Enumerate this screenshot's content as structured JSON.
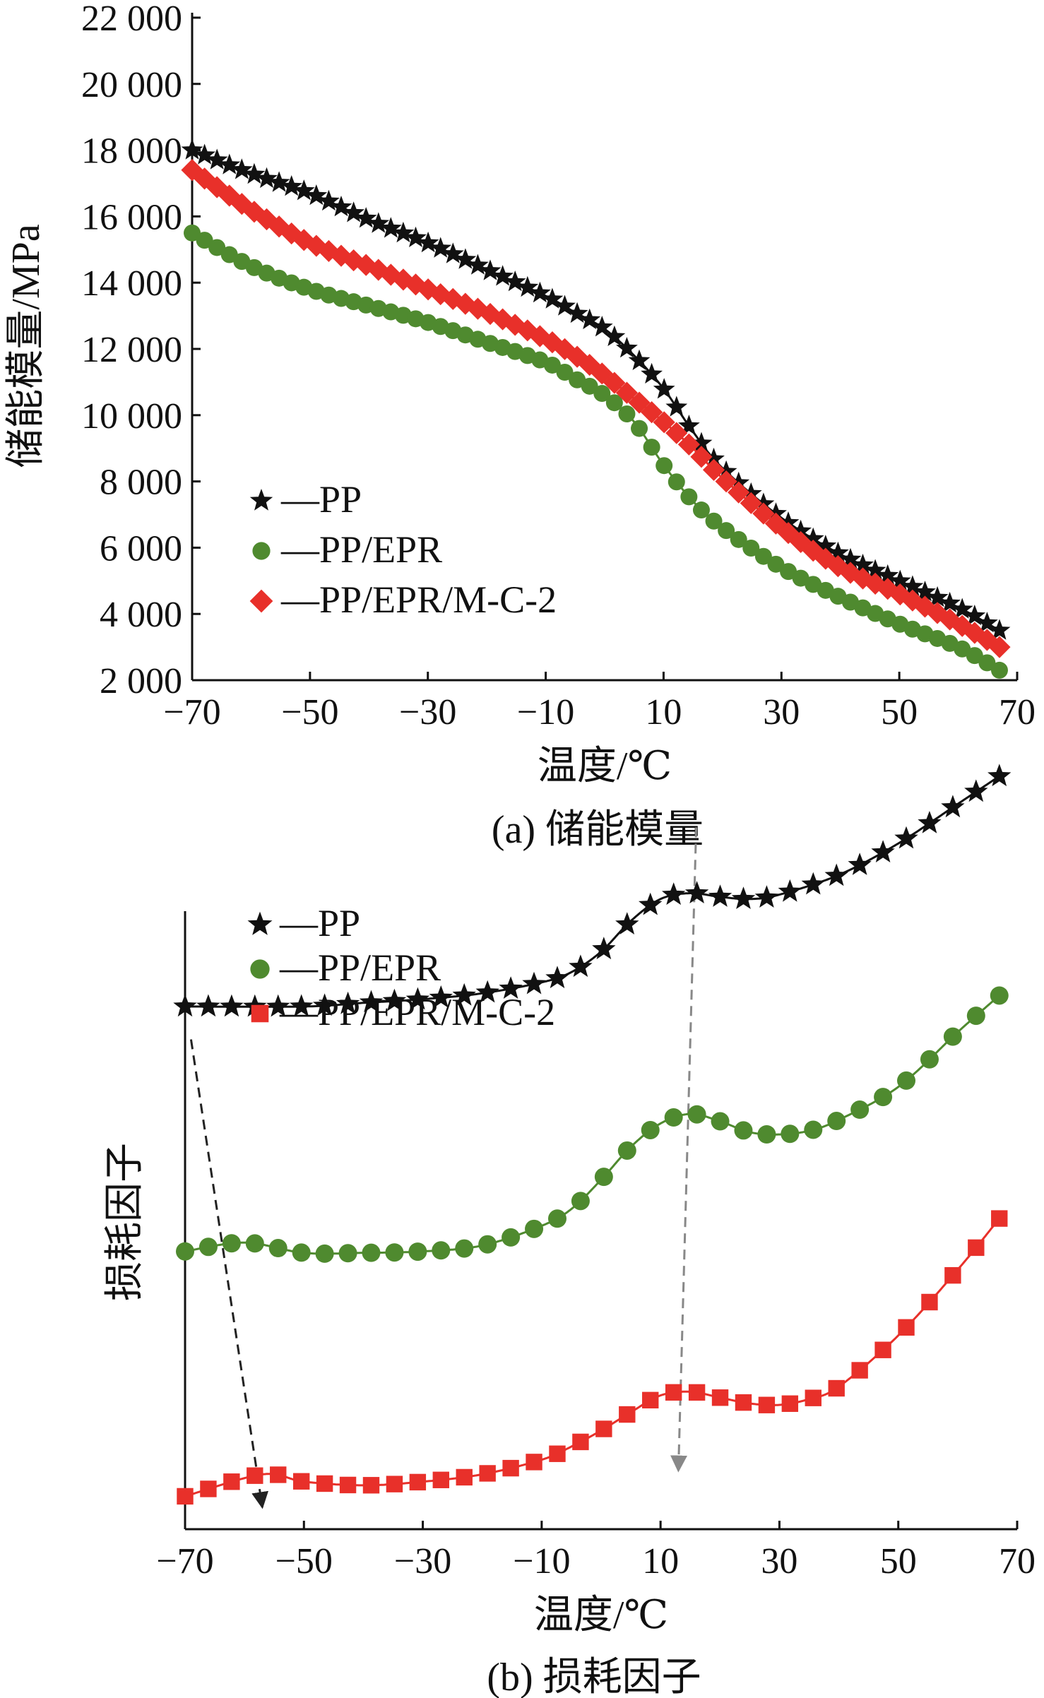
{
  "chart_data": [
    {
      "type": "line",
      "caption": "(a) 储能模量",
      "xlabel": "温度/℃",
      "ylabel": "储能模量/MPa",
      "xlim": [
        -70,
        70
      ],
      "ylim": [
        2000,
        22000
      ],
      "x_ticks": [
        "−70",
        "−50",
        "−30",
        "−10",
        "10",
        "30",
        "50",
        "70"
      ],
      "y_ticks": [
        "2 000",
        "4 000",
        "6 000",
        "8 000",
        "10 000",
        "12 000",
        "14 000",
        "16 000",
        "18 000",
        "20 000",
        "22 000"
      ],
      "legend": {
        "position": "center-left"
      },
      "series": [
        {
          "name": "—PP",
          "marker": "star",
          "color": "#111111",
          "x": [
            -70,
            -60,
            -50,
            -40,
            -30,
            -20,
            -10,
            -5,
            0,
            5,
            10,
            15,
            20,
            30,
            40,
            50,
            60,
            67
          ],
          "values": [
            18000,
            17300,
            16700,
            15900,
            15200,
            14400,
            13600,
            13100,
            12600,
            11800,
            10800,
            9500,
            8400,
            6900,
            5800,
            5000,
            4200,
            3500
          ]
        },
        {
          "name": "—PP/EPR",
          "marker": "circle",
          "color": "#4f8a2f",
          "x": [
            -70,
            -60,
            -50,
            -40,
            -30,
            -20,
            -10,
            -5,
            0,
            5,
            10,
            15,
            20,
            30,
            40,
            50,
            60,
            67
          ],
          "values": [
            15500,
            14500,
            13800,
            13300,
            12800,
            12200,
            11600,
            11100,
            10600,
            9800,
            8500,
            7400,
            6600,
            5400,
            4500,
            3700,
            3000,
            2300
          ]
        },
        {
          "name": "—PP/EPR/M-C-2",
          "marker": "diamond",
          "color": "#e8302a",
          "x": [
            -70,
            -60,
            -50,
            -40,
            -30,
            -20,
            -10,
            -5,
            0,
            5,
            10,
            15,
            20,
            30,
            40,
            50,
            60,
            67
          ],
          "values": [
            17400,
            16200,
            15200,
            14500,
            13800,
            13100,
            12300,
            11800,
            11200,
            10500,
            9800,
            9000,
            8100,
            6600,
            5400,
            4600,
            3700,
            3000
          ]
        }
      ]
    },
    {
      "type": "line",
      "caption": "(b) 损耗因子",
      "xlabel": "温度/℃",
      "ylabel": "损耗因子",
      "xlim": [
        -70,
        70
      ],
      "ylim": [
        0,
        100
      ],
      "x_ticks": [
        "−70",
        "−50",
        "−30",
        "−10",
        "10",
        "30",
        "50",
        "70"
      ],
      "y_ticks": [],
      "legend": {
        "position": "top-left"
      },
      "series": [
        {
          "name": "—PP",
          "marker": "star",
          "color": "#111111",
          "x": [
            -70,
            -50,
            -40,
            -30,
            -20,
            -10,
            -5,
            0,
            5,
            10,
            15,
            20,
            25,
            30,
            40,
            50,
            60,
            67
          ],
          "values": [
            71.5,
            71.5,
            72,
            72.5,
            73.3,
            74.8,
            76.2,
            79,
            83.2,
            86.2,
            87,
            86.5,
            86.2,
            86.8,
            89.5,
            93.8,
            99.2,
            103
          ]
        },
        {
          "name": "—PP/EPR",
          "marker": "circle",
          "color": "#4f8a2f",
          "x": [
            -70,
            -60,
            -50,
            -40,
            -30,
            -20,
            -10,
            -5,
            0,
            5,
            10,
            15,
            20,
            25,
            30,
            35,
            40,
            50,
            60,
            67
          ],
          "values": [
            38,
            39.2,
            37.8,
            37.8,
            38,
            38.8,
            41.5,
            43.8,
            47.8,
            52.3,
            55.5,
            56.8,
            55.8,
            54.3,
            54,
            54.5,
            56,
            60.5,
            68,
            73
          ]
        },
        {
          "name": "—PP/EPR/M-C-2",
          "marker": "square",
          "color": "#e8302a",
          "x": [
            -70,
            -57,
            -50,
            -40,
            -30,
            -20,
            -10,
            -5,
            0,
            5,
            10,
            15,
            20,
            25,
            30,
            35,
            40,
            50,
            60,
            67
          ],
          "values": [
            4.5,
            7.5,
            6.5,
            6,
            6.5,
            7.5,
            9.5,
            11.3,
            13.5,
            16,
            18.3,
            18.8,
            18,
            17.2,
            17,
            17.8,
            19.5,
            26.5,
            35.5,
            42.5
          ]
        }
      ],
      "arrows": [
        {
          "from": [
            -69,
            67
          ],
          "to": [
            -57,
            3
          ],
          "color": "#222222"
        },
        {
          "from": [
            16,
            96
          ],
          "to": [
            13,
            8
          ],
          "color": "#888888"
        }
      ]
    }
  ]
}
